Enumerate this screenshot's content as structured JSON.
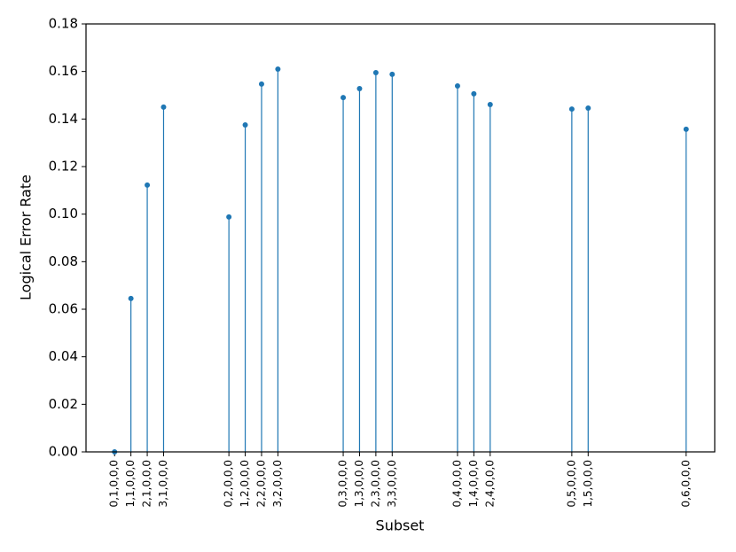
{
  "chart_data": {
    "type": "stem",
    "xlabel": "Subset",
    "ylabel": "Logical Error Rate",
    "x": [
      0,
      1,
      2,
      3,
      7,
      8,
      9,
      10,
      14,
      15,
      16,
      17,
      21,
      22,
      23,
      28,
      29,
      35
    ],
    "values": [
      0.0,
      0.0645,
      0.1122,
      0.145,
      0.0988,
      0.1375,
      0.1547,
      0.161,
      0.149,
      0.1528,
      0.1595,
      0.1588,
      0.1539,
      0.1506,
      0.1461,
      0.1442,
      0.1446,
      0.1357
    ],
    "color": "#1f77b4",
    "xlim": [
      -1.75,
      36.75
    ],
    "xticks": [
      {
        "value": 0,
        "label": "0,1,0,0,0"
      },
      {
        "value": 1,
        "label": "1,1,0,0,0"
      },
      {
        "value": 2,
        "label": "2,1,0,0,0"
      },
      {
        "value": 3,
        "label": "3,1,0,0,0"
      },
      {
        "value": 7,
        "label": "0,2,0,0,0"
      },
      {
        "value": 8,
        "label": "1,2,0,0,0"
      },
      {
        "value": 9,
        "label": "2,2,0,0,0"
      },
      {
        "value": 10,
        "label": "3,2,0,0,0"
      },
      {
        "value": 14,
        "label": "0,3,0,0,0"
      },
      {
        "value": 15,
        "label": "1,3,0,0,0"
      },
      {
        "value": 16,
        "label": "2,3,0,0,0"
      },
      {
        "value": 17,
        "label": "3,3,0,0,0"
      },
      {
        "value": 21,
        "label": "0,4,0,0,0"
      },
      {
        "value": 22,
        "label": "1,4,0,0,0"
      },
      {
        "value": 23,
        "label": "2,4,0,0,0"
      },
      {
        "value": 28,
        "label": "0,5,0,0,0"
      },
      {
        "value": 29,
        "label": "1,5,0,0,0"
      },
      {
        "value": 35,
        "label": "0,6,0,0,0"
      }
    ],
    "ylim": [
      0,
      0.18
    ],
    "yticks": [
      {
        "value": 0,
        "label": "0.00"
      },
      {
        "value": 0.02,
        "label": "0.02"
      },
      {
        "value": 0.04,
        "label": "0.04"
      },
      {
        "value": 0.06,
        "label": "0.06"
      },
      {
        "value": 0.08,
        "label": "0.08"
      },
      {
        "value": 0.1,
        "label": "0.10"
      },
      {
        "value": 0.12,
        "label": "0.12"
      },
      {
        "value": 0.14,
        "label": "0.14"
      },
      {
        "value": 0.16,
        "label": "0.16"
      },
      {
        "value": 0.18,
        "label": "0.18"
      }
    ],
    "grid": false
  }
}
